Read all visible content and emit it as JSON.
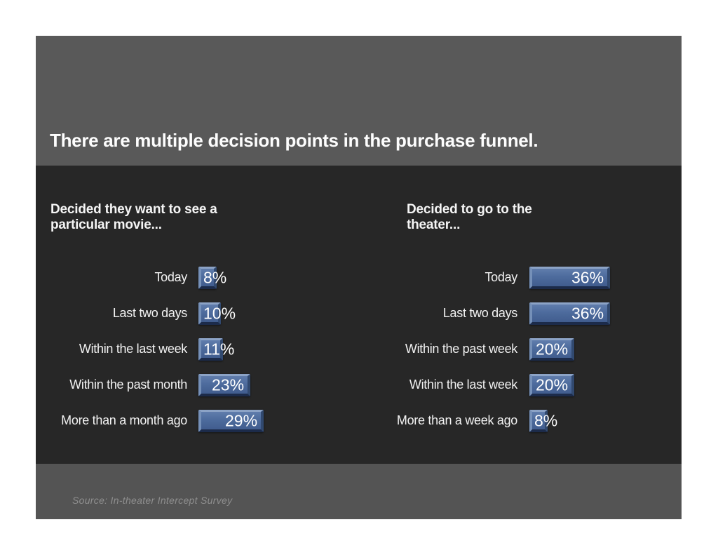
{
  "slide": {
    "title": "There are multiple decision points in the purchase funnel.",
    "source": "Source: In-theater Intercept Survey"
  },
  "colors": {
    "header_band": "#595959",
    "body_band": "#272727",
    "footer_band": "#545454",
    "bar_fill": "#4d6b9d",
    "bar_bevel_highlight": "#8ca3c6",
    "bar_bevel_shadow": "#1c2b4a",
    "title_text": "#fdfdfd",
    "label_text": "#f2f2f2",
    "value_text": "#ffffff",
    "source_text": "#8f8f8f"
  },
  "chart_data": [
    {
      "type": "bar",
      "orientation": "horizontal",
      "title": "Decided they want to see a particular movie...",
      "categories": [
        "Today",
        "Last two days",
        "Within the last week",
        "Within the past month",
        "More than a month ago"
      ],
      "values": [
        8,
        10,
        11,
        23,
        29
      ],
      "value_labels": [
        "8%",
        "10%",
        "11%",
        "23%",
        "29%"
      ],
      "unit": "percent",
      "axis_visible": false,
      "grid": false,
      "legend": false,
      "xlim": [
        0,
        100
      ]
    },
    {
      "type": "bar",
      "orientation": "horizontal",
      "title": "Decided to go to the theater...",
      "categories": [
        "Today",
        "Last two days",
        "Within the past week",
        "Within the last week",
        "More than a week ago"
      ],
      "values": [
        36,
        36,
        20,
        20,
        8
      ],
      "value_labels": [
        "36%",
        "36%",
        "20%",
        "20%",
        "8%"
      ],
      "unit": "percent",
      "axis_visible": false,
      "grid": false,
      "legend": false,
      "xlim": [
        0,
        100
      ]
    }
  ]
}
